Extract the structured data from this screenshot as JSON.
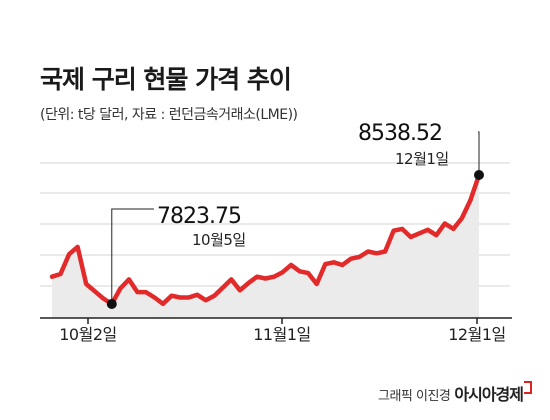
{
  "chart_data": {
    "type": "area",
    "title": "국제 구리 현물 가격 추이",
    "subtitle": "(단위: t당 달러, 자료 : 런던금속거래소(LME))",
    "x_ticks": [
      "10월2일",
      "11월1일",
      "12월1일"
    ],
    "ylim": [
      7600,
      8700
    ],
    "annotations": [
      {
        "value": "7823.75",
        "date": "10월5일"
      },
      {
        "value": "8538.52",
        "date": "12월1일"
      }
    ],
    "values": [
      7975,
      7990,
      8100,
      8140,
      7935,
      7895,
      7855,
      7824,
      7910,
      7960,
      7890,
      7890,
      7860,
      7825,
      7870,
      7860,
      7860,
      7875,
      7845,
      7870,
      7915,
      7960,
      7900,
      7940,
      7975,
      7965,
      7975,
      8000,
      8040,
      8005,
      7995,
      7935,
      8045,
      8055,
      8040,
      8075,
      8085,
      8115,
      8105,
      8115,
      8230,
      8240,
      8195,
      8215,
      8235,
      8205,
      8270,
      8240,
      8300,
      8400,
      8538.52
    ],
    "line_color": "#e32a2a",
    "area_color": "#ebebeb",
    "grid": true
  },
  "footer": {
    "credit": "그래픽 이진경",
    "brand": "아시아경제"
  }
}
